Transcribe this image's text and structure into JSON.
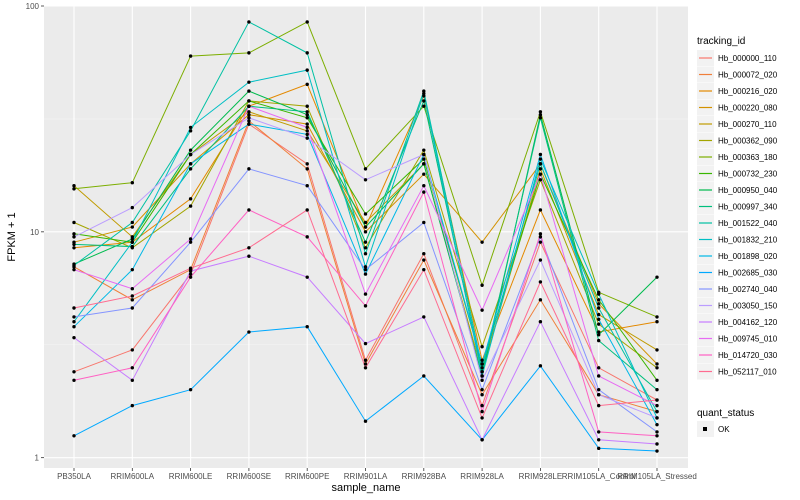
{
  "chart_data": {
    "type": "line",
    "xlabel": "sample_name",
    "ylabel": "FPKM + 1",
    "y_scale": "log10",
    "ylim": [
      0.9,
      100
    ],
    "y_ticks": [
      1,
      10,
      100
    ],
    "y_tick_labels": [
      "1",
      "10",
      "100"
    ],
    "x_tick_labels": [
      "PB350LA",
      "RRIM600LA",
      "RRIM600LE",
      "RRIM600SE",
      "RRIM600PE",
      "RRIM901LA",
      "RRIM928BA",
      "RRIM928LA",
      "RRIM928LE",
      "RRIM105LA_Control",
      "RRIM105LA_Stressed"
    ],
    "categories": [
      "PB350LA",
      "RRIM600LA",
      "RRIM600LE",
      "RRIM600SE",
      "RRIM600PE",
      "RRIM901LA",
      "RRIM928BA",
      "RRIM928LA",
      "RRIM928LE",
      "RRIM105LA_Control",
      "RRIM105LA_Stressed"
    ],
    "grid": true,
    "legend_position": "right",
    "legend_title": "tracking_id",
    "series": [
      {
        "name": "Hb_000000_110",
        "color": "#F8766D",
        "values": [
          2.4,
          3.0,
          6.5,
          30,
          20,
          2.7,
          8.0,
          1.7,
          9.0,
          2.5,
          1.8
        ]
      },
      {
        "name": "Hb_000072_020",
        "color": "#F07F3A",
        "values": [
          7.0,
          5.0,
          6.8,
          31,
          19,
          2.6,
          7.5,
          1.9,
          5.0,
          1.9,
          1.6
        ]
      },
      {
        "name": "Hb_000216_020",
        "color": "#E38900",
        "values": [
          8.5,
          9.0,
          14.0,
          36,
          45,
          10.5,
          40,
          2.7,
          12.5,
          3.6,
          4.0
        ]
      },
      {
        "name": "Hb_000220_080",
        "color": "#D39200",
        "values": [
          9.0,
          10.5,
          20,
          33,
          30,
          10.0,
          18,
          9.0,
          20,
          4.8,
          2.6
        ]
      },
      {
        "name": "Hb_000270_110",
        "color": "#C09B00",
        "values": [
          16.0,
          9.5,
          22,
          34,
          28,
          11.0,
          20,
          2.4,
          19,
          4.3,
          3.0
        ]
      },
      {
        "name": "Hb_000362_090",
        "color": "#A3A500",
        "values": [
          11.0,
          8.5,
          13,
          38,
          36,
          8.5,
          23,
          3.1,
          17,
          3.9,
          2.5
        ]
      },
      {
        "name": "Hb_000363_180",
        "color": "#7CAE00",
        "values": [
          15.5,
          16.5,
          60,
          62,
          85,
          19,
          36,
          5.8,
          34,
          5.4,
          4.2
        ]
      },
      {
        "name": "Hb_000732_230",
        "color": "#39B600",
        "values": [
          9.8,
          9.0,
          22,
          38,
          32,
          12,
          21,
          2.6,
          18,
          5.0,
          2.2
        ]
      },
      {
        "name": "Hb_000950_040",
        "color": "#00BB4E",
        "values": [
          7.2,
          9.3,
          23,
          42,
          33,
          10.5,
          20,
          2.3,
          33,
          3.5,
          6.3
        ]
      },
      {
        "name": "Hb_000997_340",
        "color": "#00BF7D",
        "values": [
          8.8,
          8.6,
          19,
          36,
          34,
          9.0,
          38,
          2.4,
          32,
          3.3,
          2.0
        ]
      },
      {
        "name": "Hb_001522_040",
        "color": "#00C1A3",
        "values": [
          7.1,
          11.0,
          28,
          85,
          62,
          8.0,
          42,
          2.5,
          20,
          4.6,
          1.6
        ]
      },
      {
        "name": "Hb_001832_210",
        "color": "#00BFC4",
        "values": [
          4.0,
          9.0,
          29,
          46,
          52,
          7.0,
          41,
          2.3,
          21,
          5.3,
          1.5
        ]
      },
      {
        "name": "Hb_001898_020",
        "color": "#00B8E7",
        "values": [
          3.8,
          6.8,
          20,
          30,
          27,
          6.5,
          22,
          2.6,
          22,
          4.1,
          1.4
        ]
      },
      {
        "name": "Hb_002685_030",
        "color": "#00A9FF",
        "values": [
          1.25,
          1.7,
          2.0,
          3.6,
          3.8,
          1.45,
          2.3,
          1.2,
          2.55,
          1.1,
          1.07
        ]
      },
      {
        "name": "Hb_002740_040",
        "color": "#8494FF",
        "values": [
          4.2,
          4.6,
          9.0,
          19,
          16,
          6.8,
          11,
          2.0,
          9.5,
          2.0,
          1.3
        ]
      },
      {
        "name": "Hb_003050_150",
        "color": "#BB9DFF",
        "values": [
          9.5,
          12.8,
          22,
          32,
          26,
          17,
          22,
          2.2,
          7.5,
          1.9,
          1.5
        ]
      },
      {
        "name": "Hb_004162_120",
        "color": "#C77CFF",
        "values": [
          3.4,
          2.2,
          6.7,
          7.8,
          6.3,
          3.2,
          4.2,
          1.2,
          4.0,
          1.2,
          1.15
        ]
      },
      {
        "name": "Hb_009745_010",
        "color": "#E76BF3",
        "values": [
          6.8,
          5.6,
          9.3,
          36,
          29,
          5.3,
          16,
          4.5,
          18,
          2.3,
          1.7
        ]
      },
      {
        "name": "Hb_014720_030",
        "color": "#FF61C3",
        "values": [
          2.2,
          2.5,
          6.3,
          12.5,
          9.5,
          4.7,
          15,
          1.6,
          9.8,
          1.3,
          1.25
        ]
      },
      {
        "name": "Hb_052117_010",
        "color": "#FF6C91",
        "values": [
          4.6,
          5.2,
          6.9,
          8.5,
          12.5,
          2.5,
          6.8,
          1.5,
          6.0,
          1.7,
          1.8
        ]
      }
    ],
    "point_color": "#000000",
    "shape_legend": {
      "title": "quant_status",
      "items": [
        "OK"
      ]
    }
  }
}
